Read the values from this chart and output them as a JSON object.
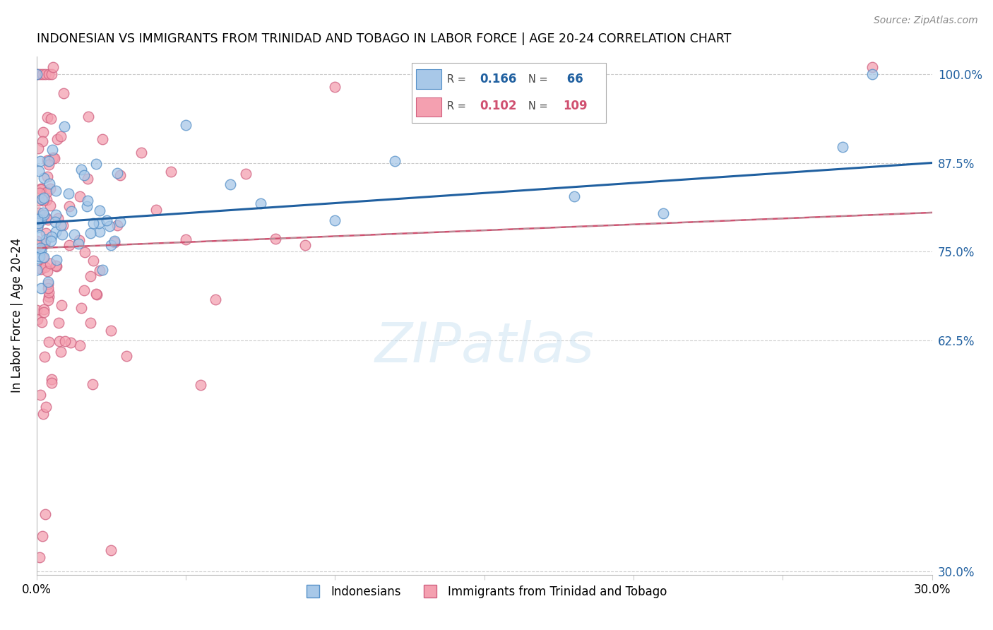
{
  "title": "INDONESIAN VS IMMIGRANTS FROM TRINIDAD AND TOBAGO IN LABOR FORCE | AGE 20-24 CORRELATION CHART",
  "source": "Source: ZipAtlas.com",
  "ylabel": "In Labor Force | Age 20-24",
  "xlim": [
    0.0,
    0.3
  ],
  "ylim": [
    0.295,
    1.025
  ],
  "yticks": [
    0.3,
    0.625,
    0.75,
    0.875,
    1.0
  ],
  "ytick_labels": [
    "30.0%",
    "62.5%",
    "75.0%",
    "87.5%",
    "100.0%"
  ],
  "xticks": [
    0.0,
    0.05,
    0.1,
    0.15,
    0.2,
    0.25,
    0.3
  ],
  "blue_R": 0.166,
  "blue_N": 66,
  "pink_R": 0.102,
  "pink_N": 109,
  "blue_color": "#a8c8e8",
  "pink_color": "#f4a0b0",
  "blue_edge_color": "#5590c8",
  "pink_edge_color": "#d06080",
  "blue_line_color": "#2060a0",
  "pink_line_color": "#d05070",
  "watermark": "ZIPatlas",
  "legend_label_blue": "Indonesians",
  "legend_label_pink": "Immigrants from Trinidad and Tobago"
}
